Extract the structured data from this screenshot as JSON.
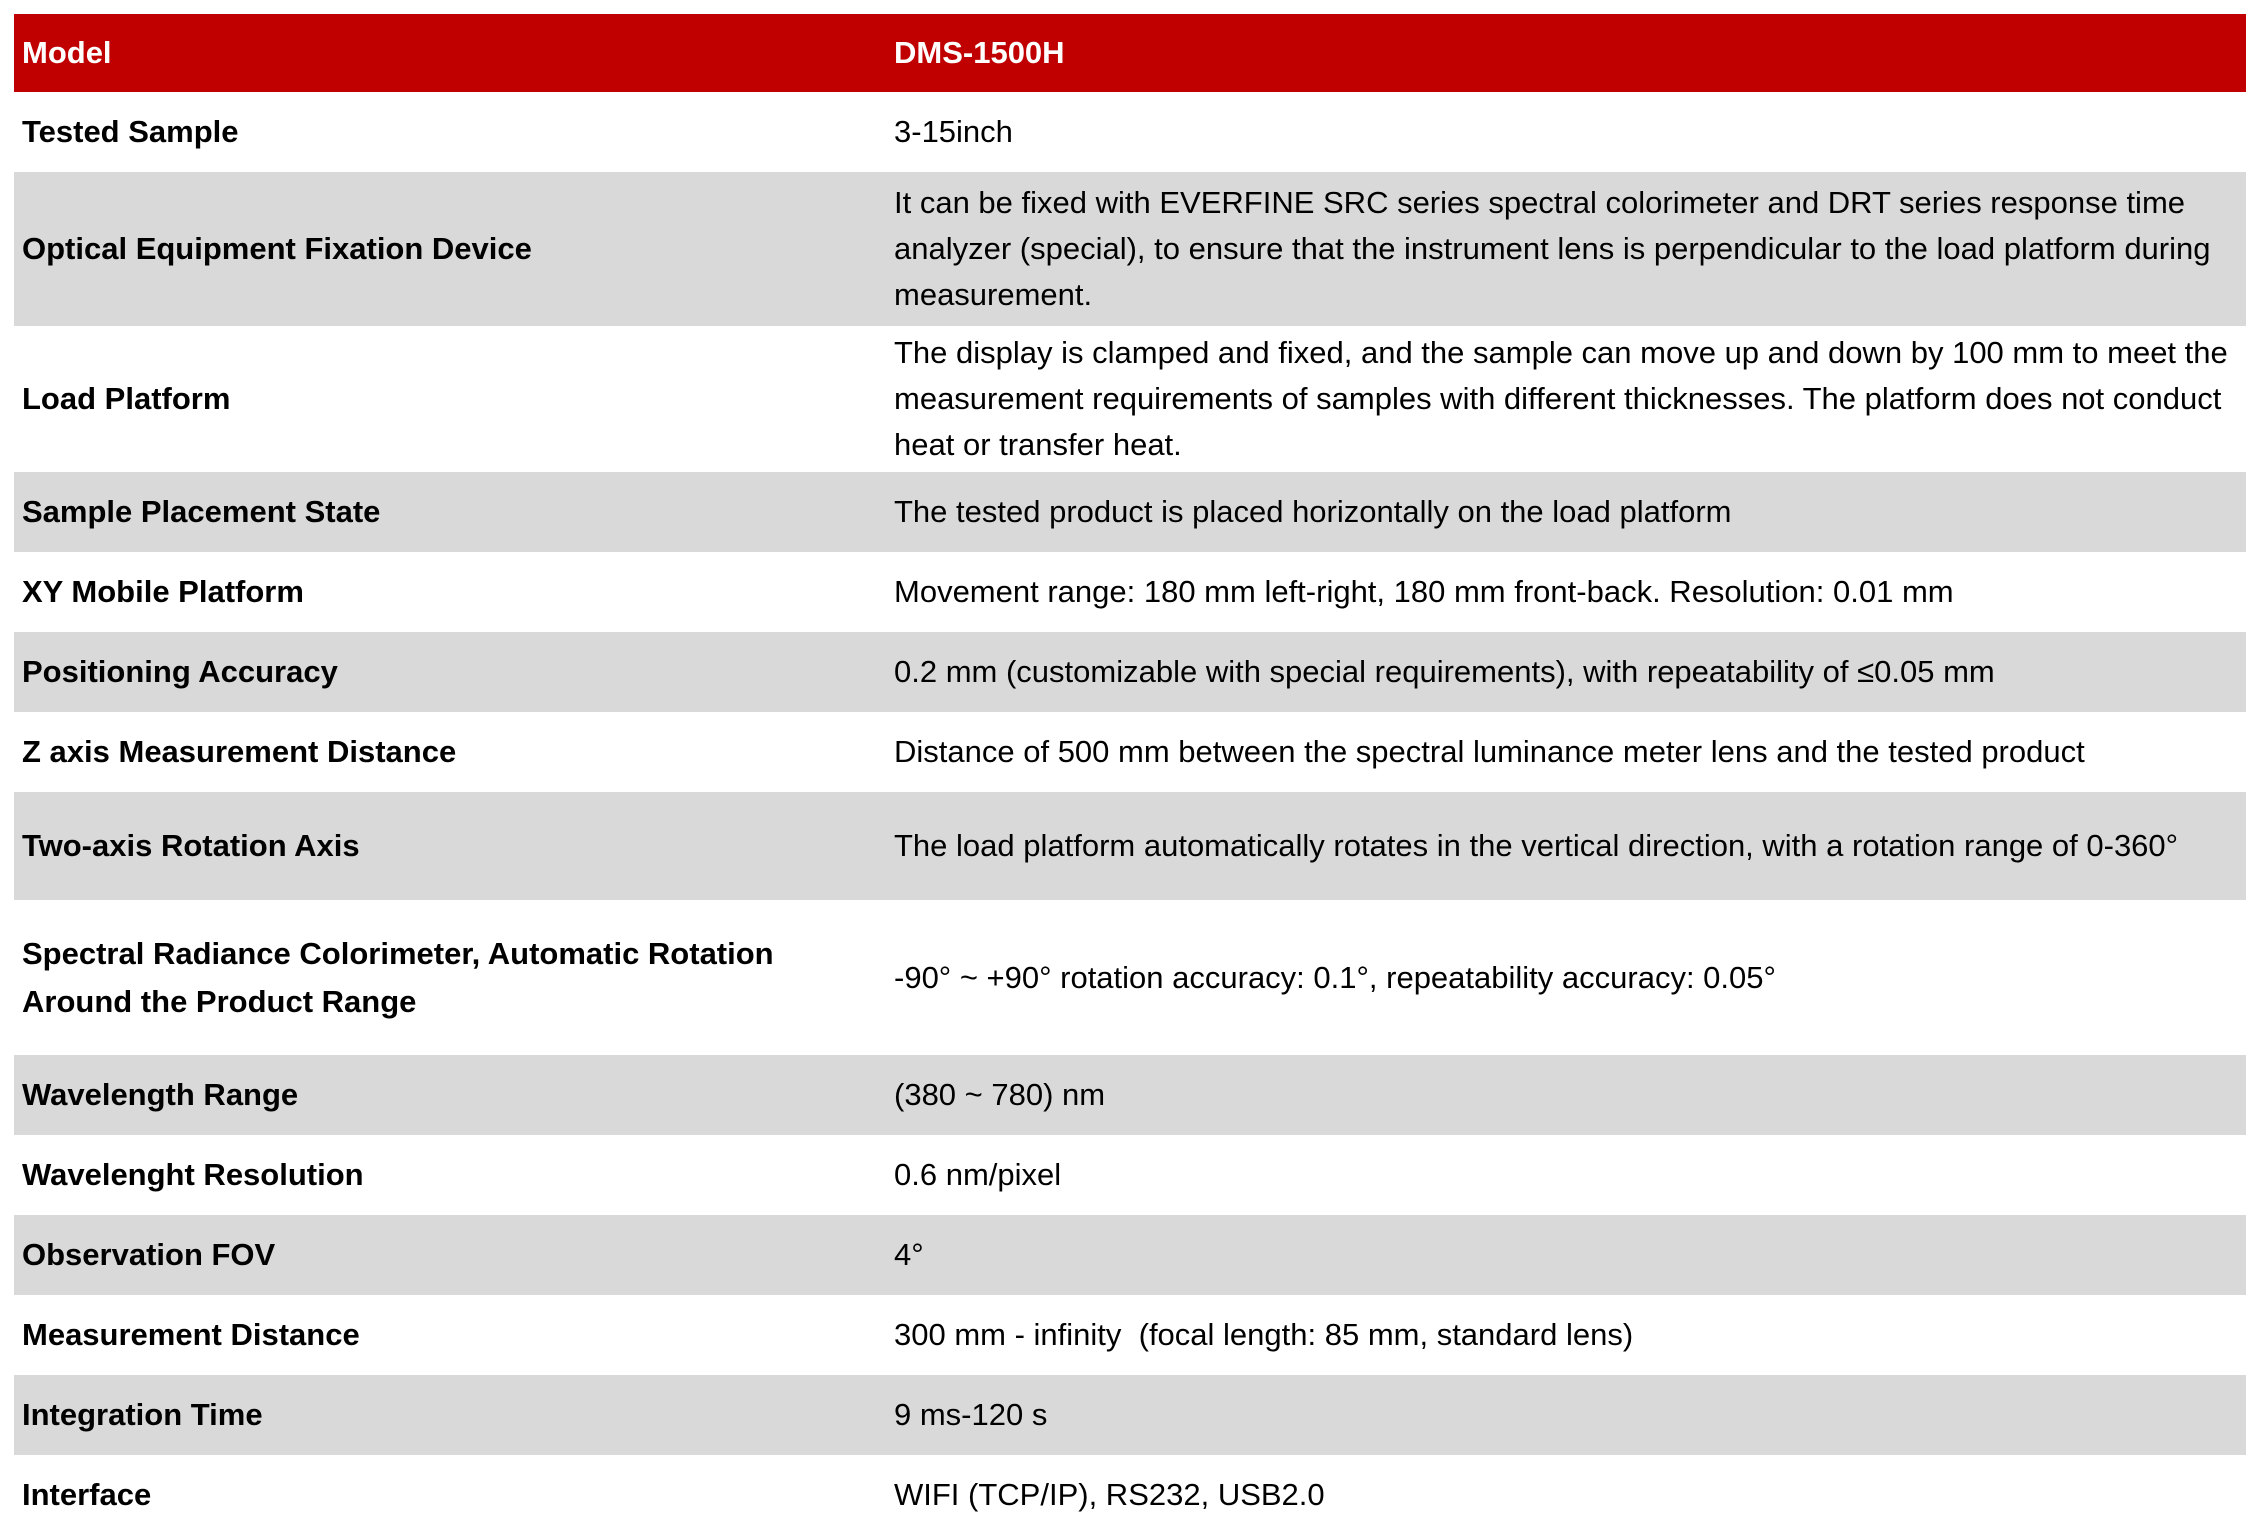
{
  "header": {
    "label": "Model",
    "value": "DMS-1500H"
  },
  "colors": {
    "header_bg": "#C00000",
    "alt_row_bg": "#D9D9D9"
  },
  "rows": [
    {
      "label": "Tested Sample",
      "value": "3-15inch"
    },
    {
      "label": "Optical Equipment Fixation Device",
      "value": "It can be fixed with EVERFINE SRC series spectral colorimeter and DRT series response time analyzer (special), to ensure that the instrument lens is perpendicular to the load platform during measurement."
    },
    {
      "label": "Load Platform",
      "value": "The display is clamped and fixed, and the sample can move up and down by 100 mm to meet the measurement requirements of samples with different thicknesses. The platform does not conduct heat or transfer heat."
    },
    {
      "label": "Sample Placement State",
      "value": "The tested product is placed horizontally on the load platform"
    },
    {
      "label": "XY Mobile Platform",
      "value": "Movement range: 180 mm left-right, 180 mm front-back. Resolution: 0.01 mm"
    },
    {
      "label": "Positioning Accuracy",
      "value": "0.2 mm (customizable with special requirements), with repeatability of ≤0.05 mm"
    },
    {
      "label": "Z axis Measurement Distance",
      "value": "Distance of 500 mm between the spectral luminance meter lens and the tested product"
    },
    {
      "label": "Two-axis Rotation Axis",
      "value": "The load platform automatically rotates in the vertical direction, with a rotation range of 0-360°"
    },
    {
      "label": "Spectral Radiance Colorimeter, Automatic Rotation Around the Product Range",
      "value": "-90° ~ +90° rotation accuracy: 0.1°, repeatability accuracy: 0.05°"
    },
    {
      "label": "Wavelength Range",
      "value": "(380 ~ 780) nm"
    },
    {
      "label": "Wavelenght Resolution",
      "value": "0.6 nm/pixel"
    },
    {
      "label": "Observation FOV",
      "value": "4°"
    },
    {
      "label": "Measurement Distance",
      "value": "300 mm - infinity  (focal length: 85 mm, standard lens)"
    },
    {
      "label": "Integration Time",
      "value": "9 ms-120 s"
    },
    {
      "label": "Interface",
      "value": "WIFI (TCP/IP), RS232, USB2.0"
    }
  ]
}
